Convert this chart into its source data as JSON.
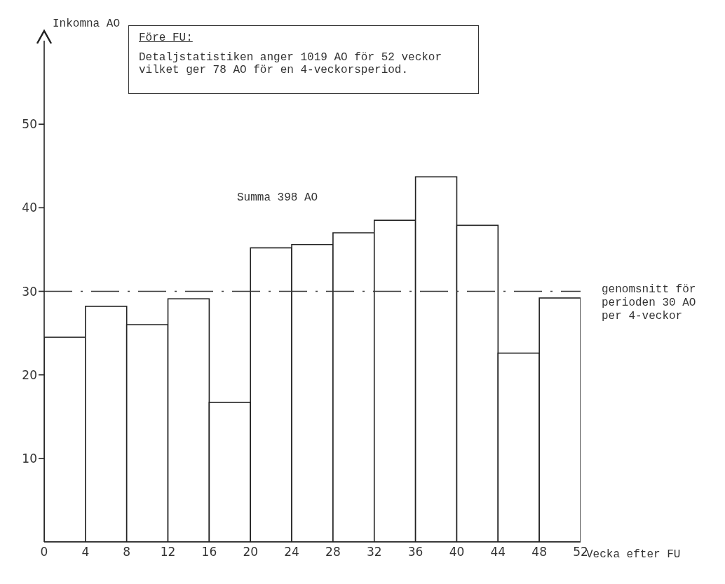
{
  "chart_data": {
    "type": "histogram",
    "ylabel": "Inkomna AO",
    "xlabel": "Vecka efter FU",
    "bins": [
      0,
      4,
      8,
      12,
      16,
      20,
      24,
      28,
      32,
      36,
      40,
      44,
      48,
      52
    ],
    "values": [
      24.5,
      28.2,
      26.0,
      29.1,
      16.7,
      35.2,
      35.6,
      37.0,
      38.5,
      43.7,
      37.9,
      22.6,
      29.2
    ],
    "color": "#ffffff",
    "xlim": [
      0,
      52
    ],
    "xticks": [
      0,
      4,
      8,
      12,
      16,
      20,
      24,
      28,
      32,
      36,
      40,
      44,
      48,
      52
    ],
    "ylim": [
      0,
      60
    ],
    "yticks": [
      10,
      20,
      30,
      40,
      50
    ],
    "grid": false,
    "legend": false,
    "ref_lines": [
      {
        "axis": "y",
        "value": 30,
        "label": "genomsnitt för perioden 30 AO per 4-veckor",
        "line_style": "dashed"
      }
    ],
    "annotations": [
      "Före FU:",
      "Detaljstatistiken anger 1019 AO för 52 veckor vilket ger 78 AO för en 4-veckorsperiod.",
      "Summa 398 AO"
    ]
  }
}
